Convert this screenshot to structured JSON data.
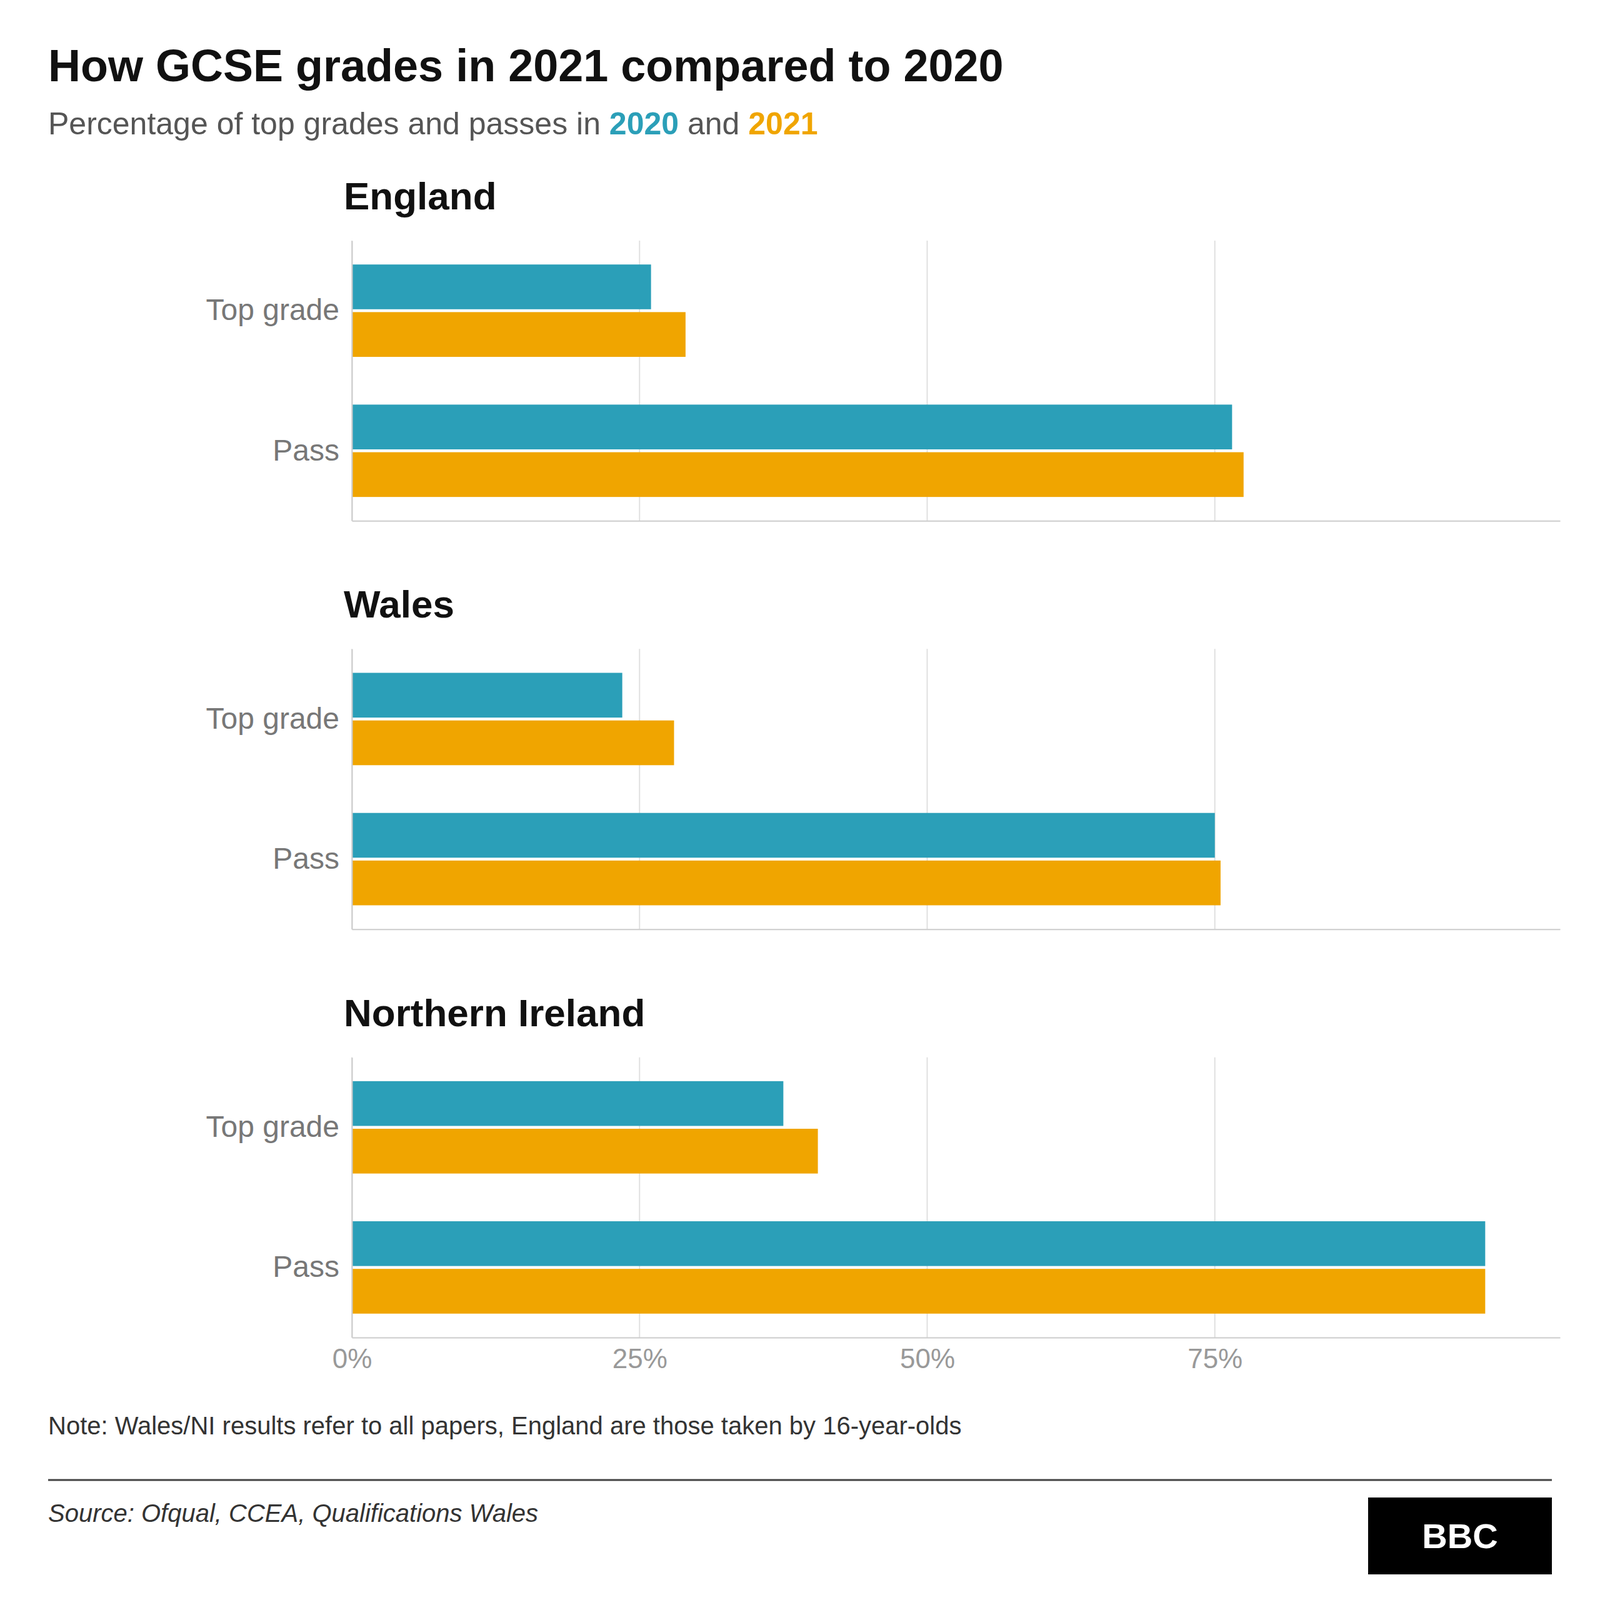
{
  "title": "How GCSE grades in 2021 compared to 2020",
  "subtitle": "Percentage of top grades and passes in 2020 and 2021",
  "annotations": [
    "Note: Wales/NI results refer to all papers, England are those taken by 16-year-olds",
    "Source: Ofqual, CCEA, Qualifications Wales",
    "BBC"
  ],
  "chart_data": [
    {
      "type": "bar",
      "orientation": "horizontal",
      "title": "England",
      "categories": [
        "Top grade",
        "Pass"
      ],
      "series": [
        {
          "name": "2020",
          "color": "#2B9FB8",
          "values": [
            26.0,
            76.5
          ]
        },
        {
          "name": "2021",
          "color": "#F0A500",
          "values": [
            29.0,
            77.5
          ]
        }
      ],
      "xlim": [
        0,
        105
      ],
      "xticks": [
        0,
        25,
        50,
        75
      ],
      "grid": true,
      "tick_labels": "y"
    },
    {
      "type": "bar",
      "orientation": "horizontal",
      "title": "Wales",
      "categories": [
        "Top grade",
        "Pass"
      ],
      "series": [
        {
          "name": "2020",
          "color": "#2B9FB8",
          "values": [
            23.5,
            75.0
          ]
        },
        {
          "name": "2021",
          "color": "#F0A500",
          "values": [
            28.0,
            75.5
          ]
        }
      ],
      "xlim": [
        0,
        105
      ],
      "xticks": [
        0,
        25,
        50,
        75
      ],
      "grid": true,
      "tick_labels": "y"
    },
    {
      "type": "bar",
      "orientation": "horizontal",
      "title": "Northern Ireland",
      "categories": [
        "Top grade",
        "Pass"
      ],
      "series": [
        {
          "name": "2020",
          "color": "#2B9FB8",
          "values": [
            37.5,
            98.5
          ]
        },
        {
          "name": "2021",
          "color": "#F0A500",
          "values": [
            40.5,
            98.5
          ]
        }
      ],
      "xlim": [
        0,
        105
      ],
      "xticks": [
        {
          "value": 0,
          "label": "0%"
        },
        {
          "value": 25,
          "label": "25%"
        },
        {
          "value": 50,
          "label": "50%"
        },
        {
          "value": 75,
          "label": "75%"
        }
      ],
      "grid": true
    }
  ]
}
